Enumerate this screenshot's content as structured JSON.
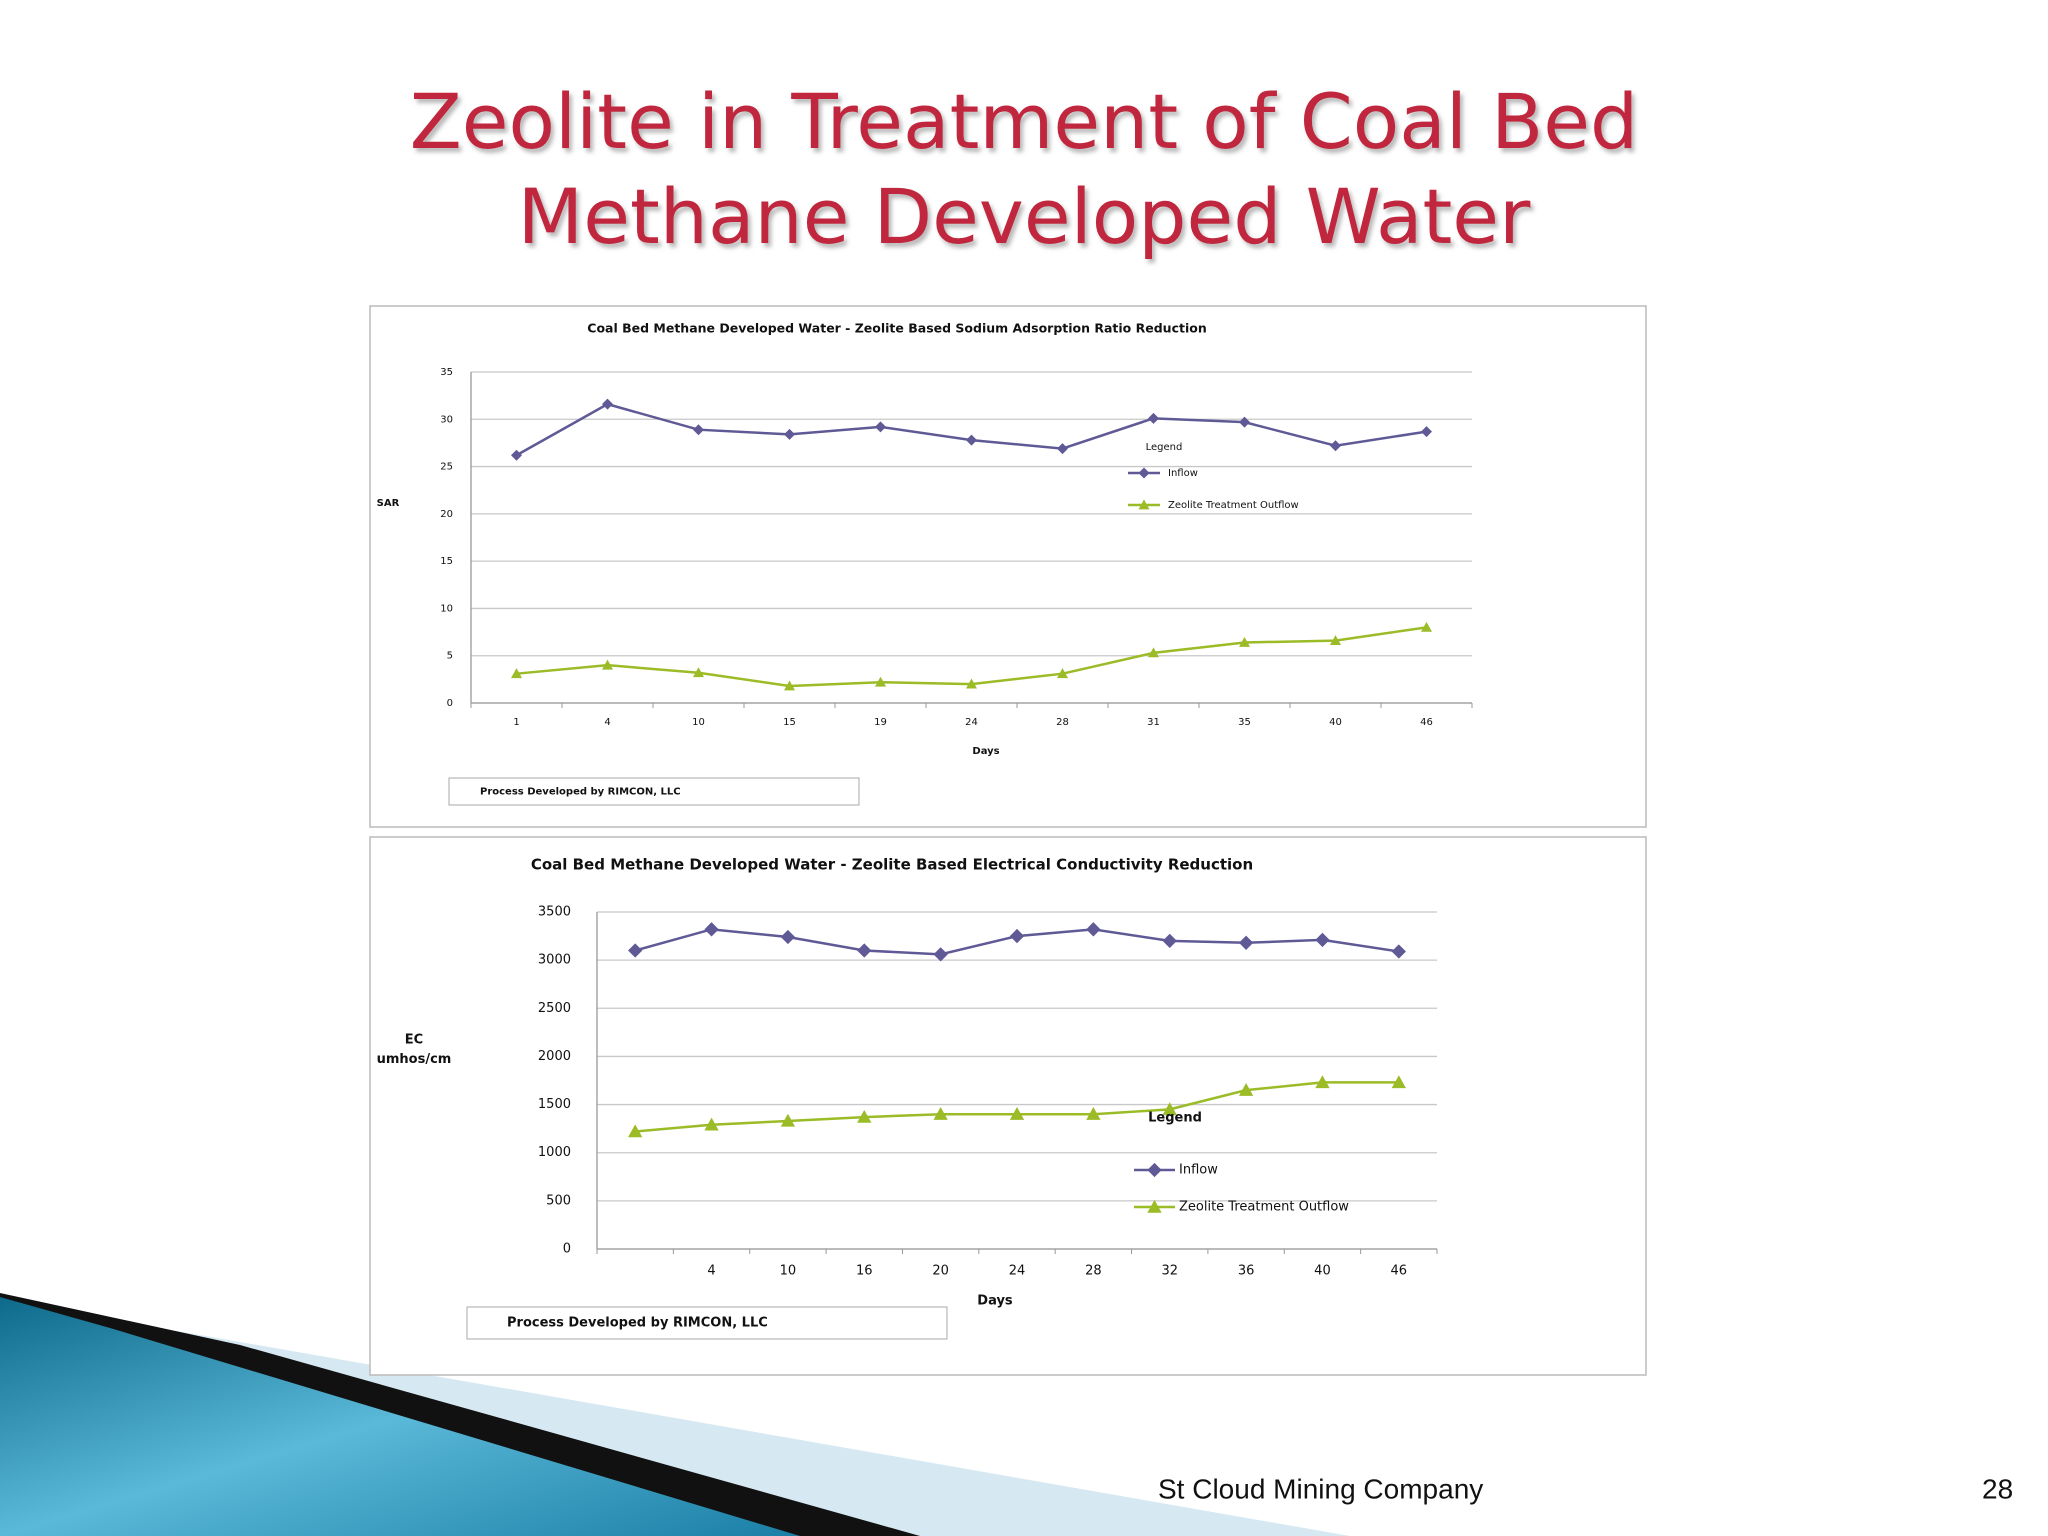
{
  "slide_title": [
    "Zeolite in Treatment of Coal Bed",
    "Methane Developed Water"
  ],
  "footer": "St Cloud Mining Company",
  "page_number": "28",
  "chart_data": [
    {
      "type": "line",
      "title": "Coal Bed Methane Developed Water - Zeolite Based Sodium Adsorption Ratio Reduction",
      "x_label": "Days",
      "y_label": [
        "SAR"
      ],
      "categories": [
        "1",
        "4",
        "10",
        "15",
        "19",
        "24",
        "28",
        "31",
        "35",
        "40",
        "46"
      ],
      "series": [
        {
          "name": "Inflow",
          "color": "#5f5a96",
          "marker": "diamond",
          "values": [
            26.2,
            31.6,
            28.9,
            28.4,
            29.2,
            27.8,
            26.9,
            30.1,
            29.7,
            27.2,
            28.7
          ]
        },
        {
          "name": "Zeolite Treatment  Outflow",
          "color": "#9bbb27",
          "marker": "triangle",
          "values": [
            3.1,
            4.0,
            3.2,
            1.8,
            2.2,
            2.0,
            3.1,
            5.3,
            6.4,
            6.6,
            8.0
          ]
        }
      ],
      "ylim": [
        0,
        35
      ],
      "yticks": [
        0,
        5,
        10,
        15,
        20,
        25,
        30,
        35
      ],
      "grid": true,
      "legend_title": "Legend",
      "note": "Process Developed by RIMCON, LLC"
    },
    {
      "type": "line",
      "title": "Coal Bed Methane Developed Water - Zeolite Based Electrical Conductivity Reduction",
      "x_label": "Days",
      "y_label": [
        "EC",
        "umhos/cm"
      ],
      "categories": [
        null,
        "4",
        "10",
        "16",
        "20",
        "24",
        "28",
        "32",
        "36",
        "40",
        "46"
      ],
      "series": [
        {
          "name": "Inflow",
          "color": "#5f5a96",
          "marker": "diamond",
          "values": [
            3100,
            3320,
            3240,
            3100,
            3060,
            3250,
            3320,
            3200,
            3180,
            3210,
            3090
          ]
        },
        {
          "name": "Zeolite Treatment Outflow",
          "color": "#9bbb27",
          "marker": "triangle",
          "values": [
            1220,
            1290,
            1330,
            1370,
            1400,
            1400,
            1400,
            1450,
            1650,
            1730,
            1730
          ]
        }
      ],
      "ylim": [
        0,
        3500
      ],
      "yticks": [
        0,
        500,
        1000,
        1500,
        2000,
        2500,
        3000,
        3500
      ],
      "grid": true,
      "legend_title": "Legend",
      "note": "Process Developed by RIMCON, LLC"
    }
  ]
}
